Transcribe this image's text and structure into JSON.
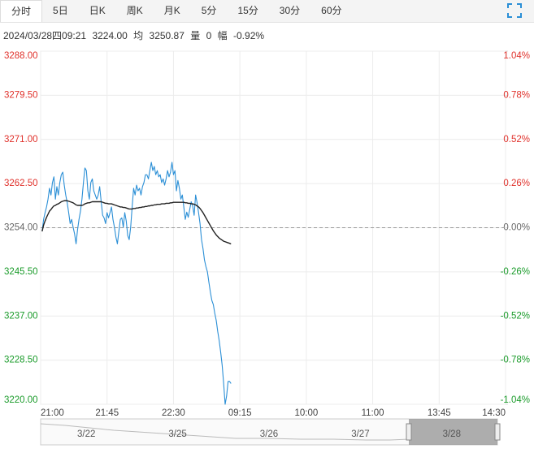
{
  "tabs": [
    "分时",
    "5日",
    "日K",
    "周K",
    "月K",
    "5分",
    "15分",
    "30分",
    "60分"
  ],
  "info": {
    "time": "2024/03/28四09:21",
    "price": "3224.00",
    "avg_label": "均",
    "avg": "3250.87",
    "vol_label": "量",
    "vol": "0",
    "range_label": "幅",
    "range": "-0.92%"
  },
  "chart_data": {
    "type": "line",
    "up_color": "#e0312b",
    "down_color": "#1a9b2a",
    "flat_color": "#666666",
    "x": [
      1,
      2,
      3,
      4,
      5,
      6,
      7,
      8,
      9,
      10,
      11,
      12,
      13,
      14,
      15,
      16,
      17,
      18,
      19,
      20,
      21,
      22,
      23,
      24,
      25,
      26,
      27,
      28,
      29,
      30,
      31,
      32,
      33,
      34,
      35,
      36,
      37,
      38,
      39,
      40,
      41,
      42,
      43,
      44,
      45,
      46,
      47,
      48,
      49,
      50,
      51,
      52,
      53,
      54,
      55,
      56,
      57,
      58,
      59,
      60,
      61,
      62,
      63,
      64,
      65,
      66,
      67,
      68,
      69,
      70,
      71,
      72,
      73,
      74,
      75,
      76,
      77,
      78,
      79,
      80,
      81,
      82,
      83,
      84,
      85,
      86,
      87,
      88,
      89,
      90,
      91,
      92,
      93,
      94,
      95,
      96,
      97,
      98,
      99,
      100,
      101,
      102,
      103,
      104,
      105,
      106,
      107,
      108,
      109,
      110,
      111,
      112,
      113,
      114,
      115,
      116,
      117,
      118,
      119,
      120,
      121,
      122,
      123,
      124,
      125,
      126,
      127,
      128,
      129
    ],
    "series": [
      {
        "color": "#2b8fd6",
        "values": [
          3253.3,
          3255.6,
          3256.9,
          3258.0,
          3259.5,
          3261.6,
          3260.3,
          3262.7,
          3263.8,
          3259.5,
          3261.9,
          3260.3,
          3262.7,
          3264.2,
          3264.7,
          3262.2,
          3260.3,
          3258.8,
          3256.9,
          3254.8,
          3255.6,
          3254.1,
          3252.8,
          3250.9,
          3253.6,
          3255.6,
          3257.2,
          3259.5,
          3262.7,
          3265.5,
          3265.0,
          3261.1,
          3259.5,
          3262.7,
          3263.4,
          3261.1,
          3260.3,
          3259.5,
          3260.3,
          3261.9,
          3259.1,
          3256.4,
          3255.9,
          3254.8,
          3256.9,
          3255.9,
          3256.9,
          3258.0,
          3255.6,
          3254.1,
          3252.2,
          3250.9,
          3253.3,
          3255.6,
          3255.9,
          3254.1,
          3256.9,
          3255.3,
          3252.5,
          3251.7,
          3254.1,
          3258.0,
          3261.6,
          3260.3,
          3262.2,
          3261.1,
          3261.6,
          3260.3,
          3261.9,
          3262.7,
          3264.2,
          3264.2,
          3263.4,
          3265.0,
          3266.6,
          3265.0,
          3265.8,
          3264.2,
          3265.0,
          3263.8,
          3264.2,
          3262.7,
          3263.4,
          3262.2,
          3263.4,
          3265.0,
          3263.8,
          3264.7,
          3266.6,
          3264.2,
          3265.0,
          3261.1,
          3263.1,
          3261.6,
          3259.5,
          3260.3,
          3258.0,
          3255.6,
          3257.0,
          3256.0,
          3257.5,
          3259.0,
          3258.2,
          3256.4,
          3260.3,
          3258.8,
          3256.9,
          3254.8,
          3251.7,
          3250.0,
          3247.8,
          3246.5,
          3245.5,
          3243.5,
          3241.6,
          3240.0,
          3239.2,
          3237.5,
          3236.1,
          3234.0,
          3232.2,
          3230.0,
          3227.5,
          3224.0,
          3220.0,
          3221.6,
          3224.4,
          3224.4,
          3224.0
        ]
      },
      {
        "color": "#222222",
        "values": [
          3253.3,
          3254.5,
          3255.3,
          3256.0,
          3256.6,
          3257.2,
          3257.5,
          3257.9,
          3258.2,
          3258.3,
          3258.5,
          3258.6,
          3258.8,
          3259.0,
          3259.1,
          3259.2,
          3259.2,
          3259.2,
          3259.1,
          3259.0,
          3258.9,
          3258.8,
          3258.6,
          3258.4,
          3258.3,
          3258.3,
          3258.3,
          3258.3,
          3258.4,
          3258.6,
          3258.7,
          3258.8,
          3258.8,
          3258.9,
          3259.0,
          3259.0,
          3259.0,
          3259.0,
          3259.0,
          3259.0,
          3259.0,
          3258.9,
          3258.8,
          3258.7,
          3258.7,
          3258.6,
          3258.6,
          3258.6,
          3258.5,
          3258.4,
          3258.3,
          3258.2,
          3258.1,
          3258.0,
          3258.0,
          3257.9,
          3257.9,
          3257.8,
          3257.7,
          3257.6,
          3257.6,
          3257.6,
          3257.7,
          3257.7,
          3257.8,
          3257.8,
          3257.9,
          3257.9,
          3258.0,
          3258.0,
          3258.1,
          3258.1,
          3258.2,
          3258.2,
          3258.3,
          3258.3,
          3258.4,
          3258.4,
          3258.5,
          3258.5,
          3258.5,
          3258.6,
          3258.6,
          3258.6,
          3258.7,
          3258.7,
          3258.7,
          3258.8,
          3258.8,
          3258.9,
          3258.9,
          3258.9,
          3258.9,
          3258.9,
          3258.9,
          3258.9,
          3258.9,
          3258.8,
          3258.8,
          3258.7,
          3258.7,
          3258.6,
          3258.6,
          3258.5,
          3258.4,
          3258.2,
          3258.0,
          3257.7,
          3257.3,
          3256.9,
          3256.4,
          3255.9,
          3255.4,
          3254.9,
          3254.4,
          3253.9,
          3253.4,
          3253.0,
          3252.6,
          3252.3,
          3252.0,
          3251.8,
          3251.6,
          3251.4,
          3251.3,
          3251.2,
          3251.1,
          3251.0,
          3250.87
        ]
      }
    ],
    "xlim": [
      0,
      315
    ],
    "xticks": [
      {
        "value": 0,
        "label": "21:00"
      },
      {
        "value": 45,
        "label": "21:45"
      },
      {
        "value": 90,
        "label": "22:30"
      },
      {
        "value": 135,
        "label": "09:15"
      },
      {
        "value": 180,
        "label": "10:00"
      },
      {
        "value": 225,
        "label": "11:00"
      },
      {
        "value": 270,
        "label": "13:45"
      },
      {
        "value": 315,
        "label": "14:30"
      }
    ],
    "ylim": [
      3220,
      3288
    ],
    "yticks": [
      {
        "value": 3288,
        "label": "3288.00"
      },
      {
        "value": 3279.5,
        "label": "3279.50"
      },
      {
        "value": 3271,
        "label": "3271.00"
      },
      {
        "value": 3262.5,
        "label": "3262.50"
      },
      {
        "value": 3254,
        "label": "3254.00"
      },
      {
        "value": 3245.5,
        "label": "3245.50"
      },
      {
        "value": 3237,
        "label": "3237.00"
      },
      {
        "value": 3228.5,
        "label": "3228.50"
      },
      {
        "value": 3220,
        "label": "3220.00"
      }
    ],
    "y2lim": [
      -1.04,
      1.04
    ],
    "y2ticks": [
      {
        "value": 1.04,
        "label": "1.04%"
      },
      {
        "value": 0.78,
        "label": "0.78%"
      },
      {
        "value": 0.52,
        "label": "0.52%"
      },
      {
        "value": 0.26,
        "label": "0.26%"
      },
      {
        "value": 0,
        "label": "0.00%"
      },
      {
        "value": -0.26,
        "label": "-0.26%"
      },
      {
        "value": -0.52,
        "label": "-0.52%"
      },
      {
        "value": -0.78,
        "label": "-0.78%"
      },
      {
        "value": -1.04,
        "label": "-1.04%"
      }
    ],
    "grid": true,
    "navigator": {
      "labels": [
        "3/22",
        "3/25",
        "3/26",
        "3/27",
        "3/28"
      ]
    }
  }
}
